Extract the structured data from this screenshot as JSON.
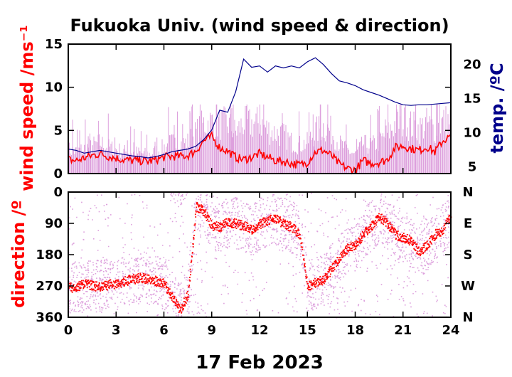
{
  "chart_data": [
    {
      "type": "line",
      "title": "Fukuoka Univ. (wind speed & direction)",
      "ylabel": "wind speed /ms⁻¹",
      "y2label": "temp. /ºC",
      "xlim": [
        0,
        24
      ],
      "ylim": [
        0,
        15
      ],
      "y2lim": [
        4,
        23
      ],
      "xticks": [
        "0",
        "3",
        "6",
        "9",
        "12",
        "15",
        "18",
        "21",
        "24"
      ],
      "yticks": [
        "0",
        "5",
        "10",
        "15"
      ],
      "y2ticks": [
        "5",
        "10",
        "15",
        "20"
      ],
      "colors": {
        "wind_mean": "#ff0000",
        "wind_raw": "#dda0dd",
        "temp": "#00008b",
        "ylabel": "#ff0000",
        "y2label": "#00008b"
      },
      "series": [
        {
          "key": "wind_mean",
          "axis": "left",
          "x": [
            0,
            0.5,
            1,
            1.5,
            2,
            2.5,
            3,
            3.5,
            4,
            4.5,
            5,
            5.5,
            6,
            6.5,
            7,
            7.5,
            8,
            8.5,
            9,
            9.5,
            10,
            10.5,
            11,
            11.5,
            12,
            12.5,
            13,
            13.5,
            14,
            14.5,
            15,
            15.5,
            16,
            16.5,
            17,
            17.5,
            18,
            18.5,
            19,
            19.5,
            20,
            20.5,
            21,
            21.5,
            22,
            22.5,
            23,
            23.5,
            24
          ],
          "y": [
            1.6,
            1.5,
            1.8,
            2.1,
            2.3,
            2.0,
            1.8,
            1.6,
            1.5,
            1.5,
            1.4,
            1.6,
            1.9,
            2.0,
            2.0,
            2.1,
            2.6,
            3.8,
            4.3,
            3.0,
            2.6,
            1.9,
            1.6,
            1.9,
            2.3,
            1.9,
            1.5,
            1.4,
            1.2,
            1.0,
            1.3,
            2.5,
            2.7,
            2.1,
            1.1,
            0.6,
            0.4,
            1.5,
            1.2,
            1.3,
            1.6,
            3.0,
            3.2,
            2.9,
            2.7,
            3.1,
            2.5,
            3.8,
            4.3
          ]
        },
        {
          "key": "wind_raw",
          "axis": "left",
          "x": [
            0,
            0.5,
            1,
            1.5,
            2,
            2.5,
            3,
            3.5,
            4,
            4.5,
            5,
            5.5,
            6,
            6.5,
            7,
            7.5,
            8,
            8.5,
            9,
            9.5,
            10,
            10.5,
            11,
            11.5,
            12,
            12.5,
            13,
            13.5,
            14,
            14.5,
            15,
            15.5,
            16,
            16.5,
            17,
            17.5,
            18,
            18.5,
            19,
            19.5,
            20,
            20.5,
            21,
            21.5,
            22,
            22.5,
            23,
            23.5,
            24
          ],
          "y": [
            3.3,
            3.0,
            3.4,
            3.8,
            4.2,
            3.6,
            3.3,
            3.0,
            2.9,
            2.8,
            2.6,
            3.0,
            3.6,
            4.2,
            4.0,
            4.3,
            5.5,
            6.8,
            7.0,
            6.8,
            6.8,
            5.6,
            6.9,
            6.7,
            7.0,
            6.0,
            5.5,
            5.3,
            4.3,
            3.9,
            4.2,
            5.7,
            6.4,
            5.8,
            4.1,
            3.2,
            2.6,
            4.0,
            3.8,
            4.3,
            5.3,
            6.8,
            7.0,
            6.6,
            6.1,
            6.8,
            6.1,
            7.1,
            7.2
          ]
        },
        {
          "key": "temp",
          "axis": "right",
          "x": [
            0,
            0.5,
            1,
            1.5,
            2,
            2.5,
            3,
            3.5,
            4,
            4.5,
            5,
            5.5,
            6,
            6.5,
            7,
            7.5,
            8,
            8.5,
            9,
            9.5,
            10,
            10.5,
            11,
            11.5,
            12,
            12.5,
            13,
            13.5,
            14,
            14.5,
            15,
            15.5,
            16,
            16.5,
            17,
            17.5,
            18,
            18.5,
            19,
            19.5,
            20,
            20.5,
            21,
            21.5,
            22,
            22.5,
            23,
            23.5,
            24
          ],
          "y": [
            7.6,
            7.4,
            7.0,
            7.2,
            7.4,
            7.2,
            7.0,
            6.8,
            6.6,
            6.5,
            6.3,
            6.5,
            6.8,
            7.2,
            7.4,
            7.6,
            8.0,
            9.0,
            10.4,
            13.3,
            13.0,
            16.0,
            20.8,
            19.6,
            19.8,
            18.9,
            19.8,
            19.5,
            19.8,
            19.5,
            20.4,
            21.0,
            20.0,
            18.7,
            17.6,
            17.3,
            16.9,
            16.3,
            15.9,
            15.5,
            15.0,
            14.5,
            14.1,
            14.0,
            14.1,
            14.1,
            14.2,
            14.3,
            14.4
          ]
        }
      ]
    },
    {
      "type": "scatter",
      "ylabel": "direction /º",
      "xlim": [
        0,
        24
      ],
      "ylim": [
        0,
        360
      ],
      "y_inverted": true,
      "xticks": [
        "0",
        "3",
        "6",
        "9",
        "12",
        "15",
        "18",
        "21",
        "24"
      ],
      "yticks": [
        "0",
        "90",
        "180",
        "270",
        "360"
      ],
      "y2ticks": [
        "N",
        "E",
        "S",
        "W",
        "N"
      ],
      "xlabel": "17 Feb 2023",
      "colors": {
        "direction_mean": "#ff0000",
        "direction_raw": "#dda0dd",
        "ylabel": "#ff0000"
      },
      "series": [
        {
          "key": "direction_mean",
          "x": [
            0,
            0.5,
            1,
            1.5,
            2,
            2.5,
            3,
            3.5,
            4,
            4.5,
            5,
            5.5,
            6,
            6.5,
            7,
            7.5,
            8,
            8.5,
            9,
            9.5,
            10,
            10.5,
            11,
            11.5,
            12,
            12.5,
            13,
            13.5,
            14,
            14.5,
            15,
            15.5,
            16,
            16.5,
            17,
            17.5,
            18,
            18.5,
            19,
            19.5,
            20,
            20.5,
            21,
            21.5,
            22,
            22.5,
            23,
            23.5,
            24
          ],
          "y": [
            275,
            270,
            262,
            268,
            270,
            265,
            262,
            255,
            250,
            245,
            248,
            255,
            262,
            300,
            340,
            290,
            40,
            55,
            95,
            100,
            85,
            90,
            95,
            110,
            90,
            80,
            75,
            90,
            100,
            120,
            270,
            260,
            250,
            220,
            190,
            160,
            150,
            120,
            95,
            70,
            90,
            120,
            130,
            140,
            170,
            150,
            120,
            110,
            60
          ]
        }
      ]
    }
  ]
}
